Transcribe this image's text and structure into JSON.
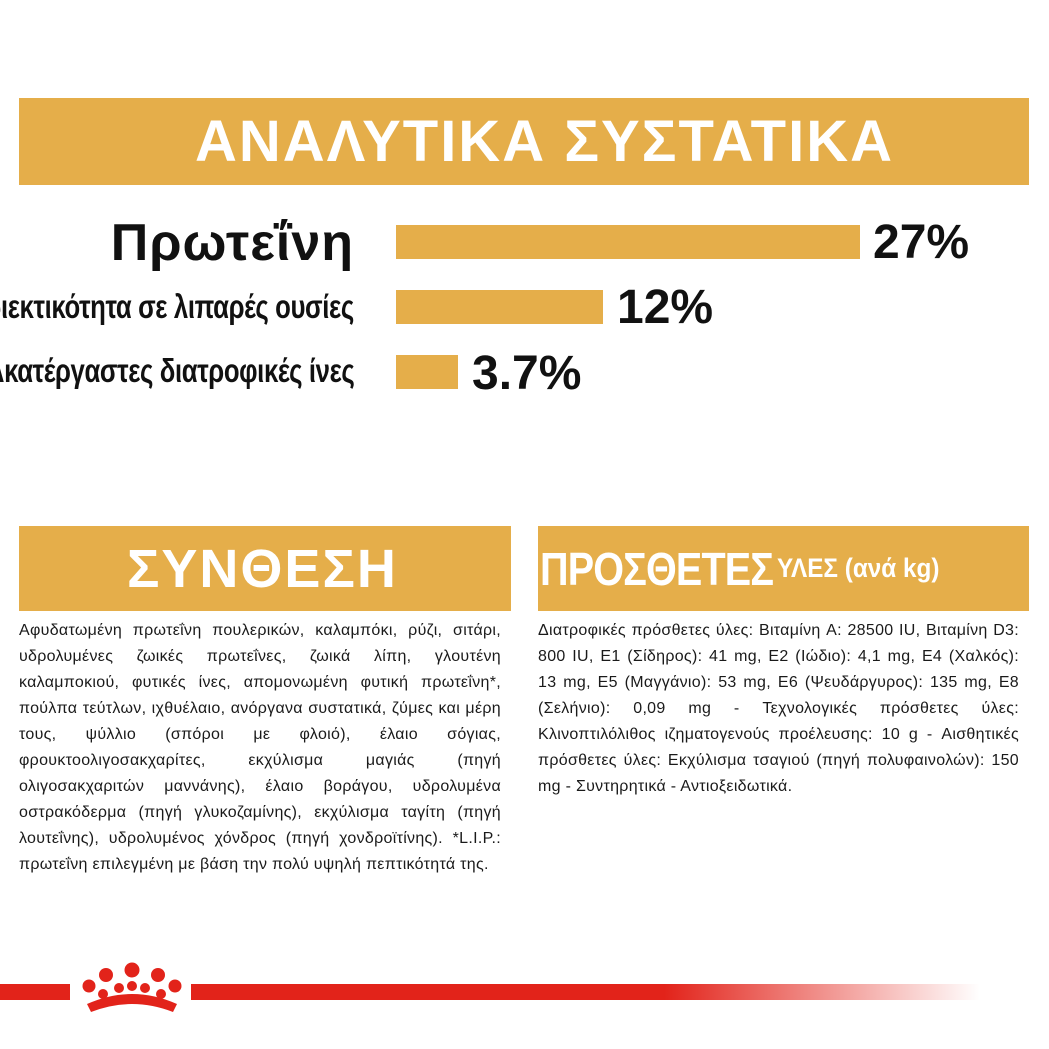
{
  "analytical": {
    "title": "ΑΝΑΛΥΤΙΚΑ ΣΥΣΤΑΤΙΚΑ",
    "items": [
      {
        "label": "Πρωτεΐνη",
        "value": "27%"
      },
      {
        "label": "Περιεκτικότητα σε λιπαρές ουσίες",
        "value": "12%"
      },
      {
        "label": "Ακατέργαστες διατροφικές ίνες",
        "value": "3.7%"
      }
    ]
  },
  "composition": {
    "title": "ΣΥΝΘΕΣΗ",
    "text": "Αφυδατωμένη πρωτεΐνη πουλερικών, καλαμπόκι, ρύζι, σιτάρι, υδρολυμένες ζωικές πρωτεΐνες, ζωικά λίπη, γλουτένη καλαμποκιού, φυτικές ίνες, απομονωμένη φυτική πρωτεΐνη*, πούλπα τεύτλων, ιχθυέλαιο, ανόργανα συστατικά, ζύμες και μέρη τους, ψύλλιο (σπόροι με φλοιό), έλαιο σόγιας, φρουκτοολιγοσακχαρίτες, εκχύλισμα μαγιάς (πηγή ολιγοσακχαριτών μαννάνης), έλαιο βοράγου, υδρολυμένα οστρακόδερμα (πηγή γλυκοζαμίνης), εκχύλισμα ταγίτη (πηγή λουτεΐνης), υδρολυμένος χόνδρος (πηγή χονδροϊτίνης). *L.I.P.: πρωτεΐνη επιλεγμένη με βάση την πολύ υψηλή πεπτικότητά της."
  },
  "additives": {
    "title_main": "ΠΡΟΣΘΕΤΕΣ",
    "title_sub": "ΥΛΕΣ (ανά kg)",
    "text": "Διατροφικές πρόσθετες ύλες: Βιταμίνη A: 28500 IU, Βιταμίνη D3: 800 IU, E1 (Σίδηρος): 41 mg, E2 (Ιώδιο): 4,1 mg, E4 (Χαλκός): 13 mg, E5 (Μαγγάνιο): 53 mg, E6 (Ψευδάργυρος): 135 mg, E8 (Σελήνιο): 0,09 mg - Τεχνολογικές πρόσθετες ύλες: Κλινοπτιλόλιθος ιζηματογενούς προέλευσης: 10 g - Αισθητικές πρόσθετες ύλες: Εκχύλισμα τσαγιού (πηγή πολυφαινολών): 150 mg - Συντηρητικά - Αντιοξειδωτικά."
  },
  "colors": {
    "accent": "#e5ae4a",
    "brand_red": "#e2231a"
  },
  "icons": [
    "crown-logo-icon"
  ]
}
